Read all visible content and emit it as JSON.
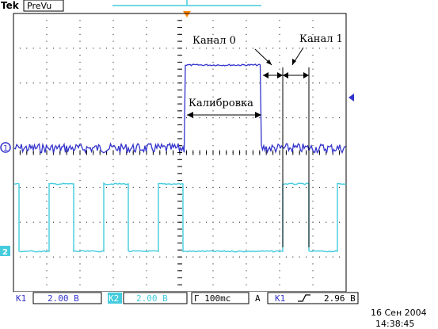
{
  "header": {
    "brand": "Tek",
    "mode": "PreVu"
  },
  "annotations": {
    "channel0": "Канал 0",
    "channel1": "Канал 1",
    "calibration": "Калибровка"
  },
  "markers": {
    "ch1": "1",
    "ch2": "2"
  },
  "status_bar": {
    "ch1_label": "K1",
    "ch1_scale": "2.00 В",
    "ch2_label": "K2",
    "ch2_scale": "2.00 В",
    "timebase": "Г 100mс",
    "trigger_mode": "A",
    "trigger_source": "K1",
    "trigger_slope_icon": "rising-edge-icon",
    "trigger_level": "2.96 В"
  },
  "timestamp": {
    "date": "16 Сен  2004",
    "time": "14:38:45"
  },
  "colors": {
    "ch1": "#3333cc",
    "ch2": "#44ccdd",
    "trigger_marker": "#ff8800",
    "grid": "#000000",
    "background": "#ffffff"
  }
}
